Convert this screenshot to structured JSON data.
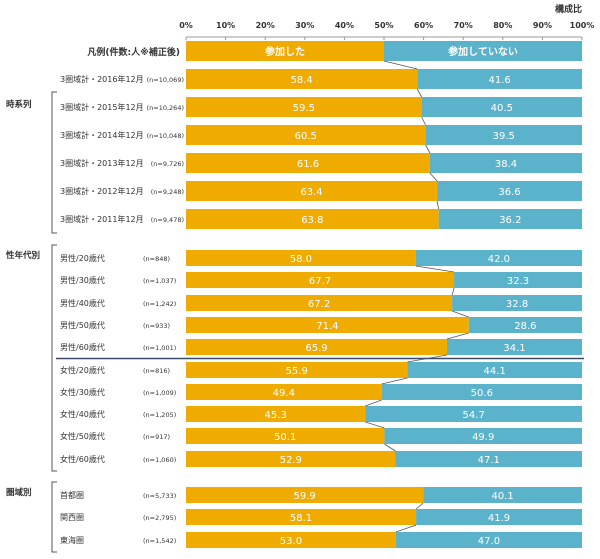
{
  "chart_data": {
    "type": "bar",
    "stacked": true,
    "orientation": "horizontal",
    "unit_label": "構成比",
    "xlim": [
      0,
      100
    ],
    "x_ticks": [
      "0%",
      "10%",
      "20%",
      "30%",
      "40%",
      "50%",
      "60%",
      "70%",
      "80%",
      "90%",
      "100%"
    ],
    "legend": {
      "label": "凡例(件数:人※補正後)",
      "entries": [
        "参加した",
        "参加していない"
      ],
      "placement": "top"
    },
    "colors": {
      "参加した": "#F0AB00",
      "参加していない": "#5BB3CB"
    },
    "rows": [
      {
        "group": "",
        "category": "3圏域計・2016年12月",
        "n": "(n=10,069)",
        "values": [
          58.4,
          41.6
        ]
      },
      {
        "group": "時系列",
        "category": "3圏域計・2015年12月",
        "n": "(n=10,264)",
        "values": [
          59.5,
          40.5
        ]
      },
      {
        "group": "時系列",
        "category": "3圏域計・2014年12月",
        "n": "(n=10,048)",
        "values": [
          60.5,
          39.5
        ]
      },
      {
        "group": "時系列",
        "category": "3圏域計・2013年12月",
        "n": "(n=9,726)",
        "values": [
          61.6,
          38.4
        ]
      },
      {
        "group": "時系列",
        "category": "3圏域計・2012年12月",
        "n": "(n=9,248)",
        "values": [
          63.4,
          36.6
        ]
      },
      {
        "group": "時系列",
        "category": "3圏域計・2011年12月",
        "n": "(n=9,478)",
        "values": [
          63.8,
          36.2
        ]
      },
      {
        "group": "性年代別",
        "category": "男性/20歳代",
        "n": "(n=848)",
        "values": [
          58.0,
          42.0
        ]
      },
      {
        "group": "性年代別",
        "category": "男性/30歳代",
        "n": "(n=1,037)",
        "values": [
          67.7,
          32.3
        ]
      },
      {
        "group": "性年代別",
        "category": "男性/40歳代",
        "n": "(n=1,242)",
        "values": [
          67.2,
          32.8
        ]
      },
      {
        "group": "性年代別",
        "category": "男性/50歳代",
        "n": "(n=933)",
        "values": [
          71.4,
          28.6
        ]
      },
      {
        "group": "性年代別",
        "category": "男性/60歳代",
        "n": "(n=1,001)",
        "values": [
          65.9,
          34.1
        ]
      },
      {
        "group": "性年代別",
        "category": "女性/20歳代",
        "n": "(n=816)",
        "values": [
          55.9,
          44.1
        ]
      },
      {
        "group": "性年代別",
        "category": "女性/30歳代",
        "n": "(n=1,009)",
        "values": [
          49.4,
          50.6
        ]
      },
      {
        "group": "性年代別",
        "category": "女性/40歳代",
        "n": "(n=1,205)",
        "values": [
          45.3,
          54.7
        ]
      },
      {
        "group": "性年代別",
        "category": "女性/50歳代",
        "n": "(n=917)",
        "values": [
          50.1,
          49.9
        ]
      },
      {
        "group": "性年代別",
        "category": "女性/60歳代",
        "n": "(n=1,060)",
        "values": [
          52.9,
          47.1
        ]
      },
      {
        "group": "圏域別",
        "category": "首都圏",
        "n": "(n=5,733)",
        "values": [
          59.9,
          40.1
        ]
      },
      {
        "group": "圏域別",
        "category": "関西圏",
        "n": "(n=2,795)",
        "values": [
          58.1,
          41.9
        ]
      },
      {
        "group": "圏域別",
        "category": "東海圏",
        "n": "(n=1,542)",
        "values": [
          53.0,
          47.0
        ]
      }
    ],
    "groups": [
      "時系列",
      "性年代別",
      "圏域別"
    ]
  }
}
